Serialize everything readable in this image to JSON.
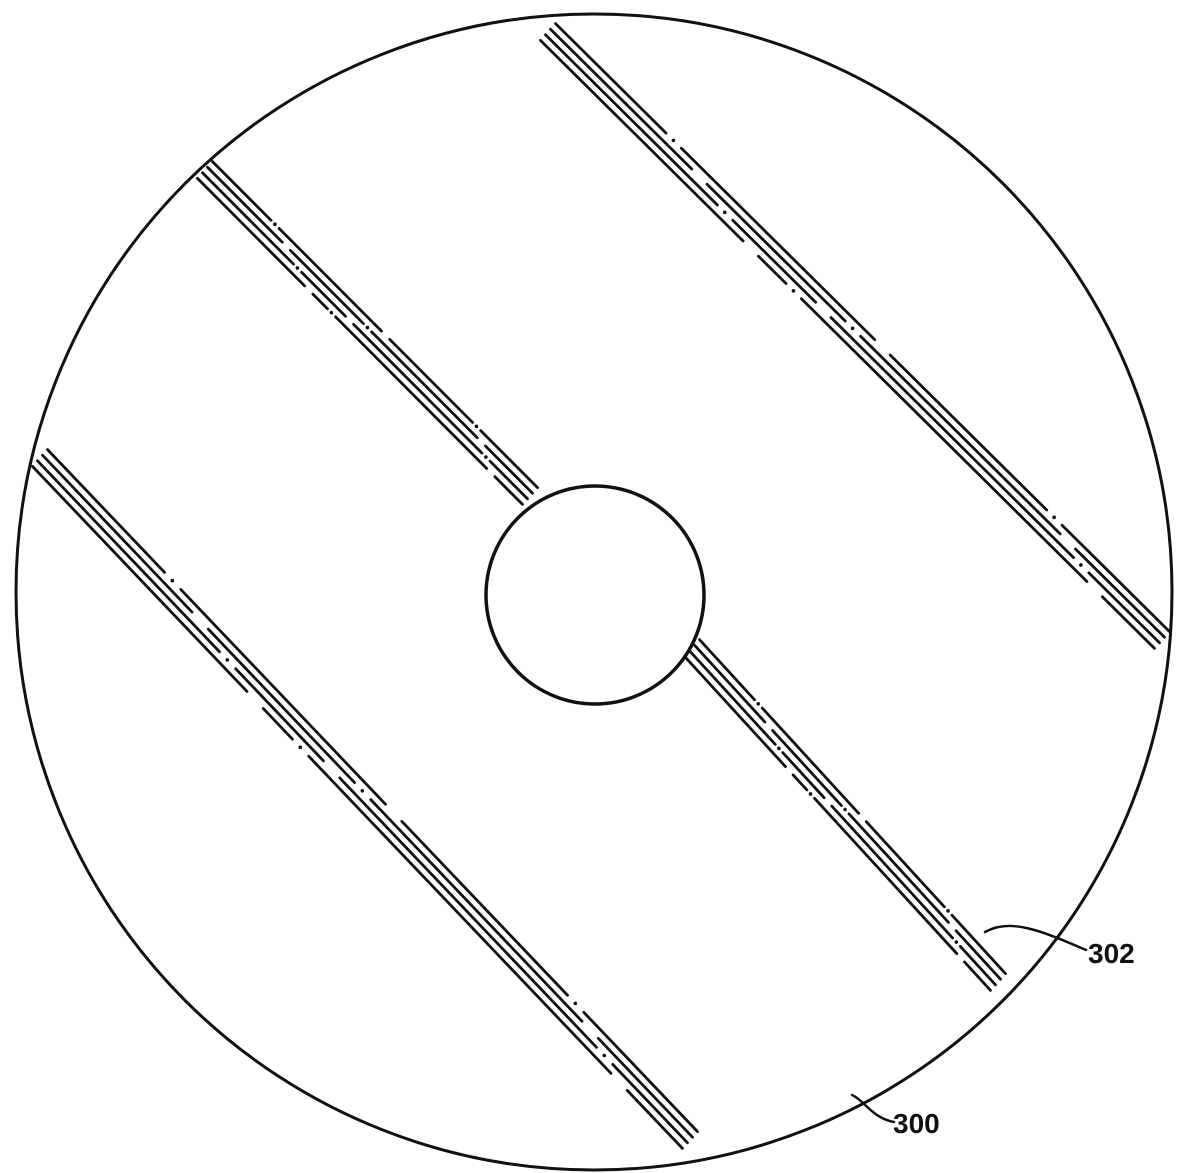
{
  "figure": {
    "labels": {
      "disc": "300",
      "track_lines": "302"
    }
  }
}
